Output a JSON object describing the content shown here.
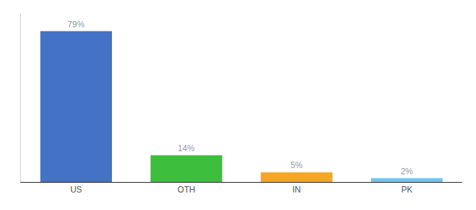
{
  "chart_data": {
    "type": "bar",
    "categories": [
      "US",
      "OTH",
      "IN",
      "PK"
    ],
    "values": [
      79,
      14,
      5,
      2
    ],
    "value_labels": [
      "79%",
      "14%",
      "5%",
      "2%"
    ],
    "colors": [
      "#4472c4",
      "#3dbf3d",
      "#f5a623",
      "#72c4f0"
    ],
    "ylim": [
      0,
      88
    ],
    "data_labels": true,
    "grid": false,
    "tick_labels": "x"
  }
}
